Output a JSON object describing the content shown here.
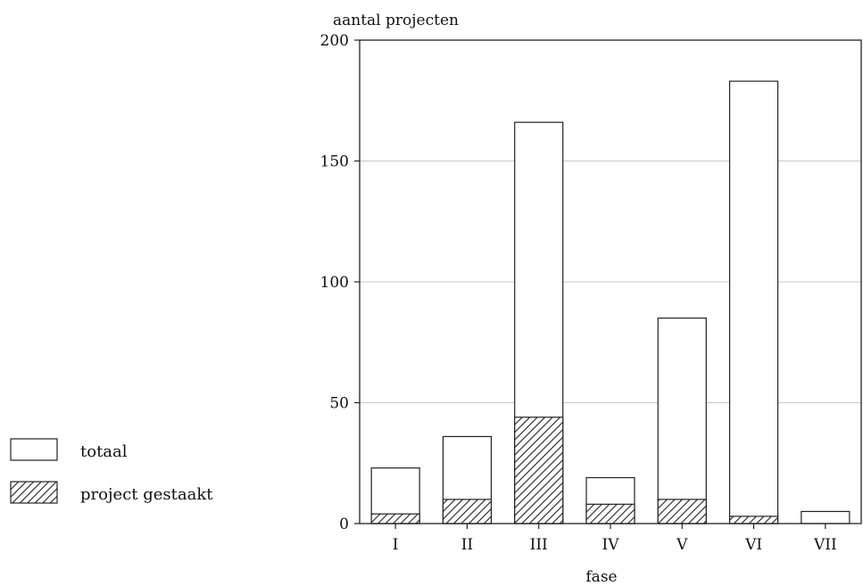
{
  "chart_data": {
    "type": "bar",
    "ylabel": "aantal projecten",
    "xlabel": "fase",
    "categories": [
      "I",
      "II",
      "III",
      "IV",
      "V",
      "VI",
      "VII"
    ],
    "ylim": [
      0,
      200
    ],
    "yticks": [
      0,
      50,
      100,
      150,
      200
    ],
    "grid": "horizontal",
    "legend_position": "left",
    "series": [
      {
        "name": "totaal",
        "pattern": "open",
        "values": [
          23,
          36,
          166,
          19,
          85,
          183,
          5
        ]
      },
      {
        "name": "project gestaakt",
        "pattern": "hatched",
        "values": [
          4,
          10,
          44,
          8,
          10,
          3,
          0
        ]
      }
    ]
  }
}
